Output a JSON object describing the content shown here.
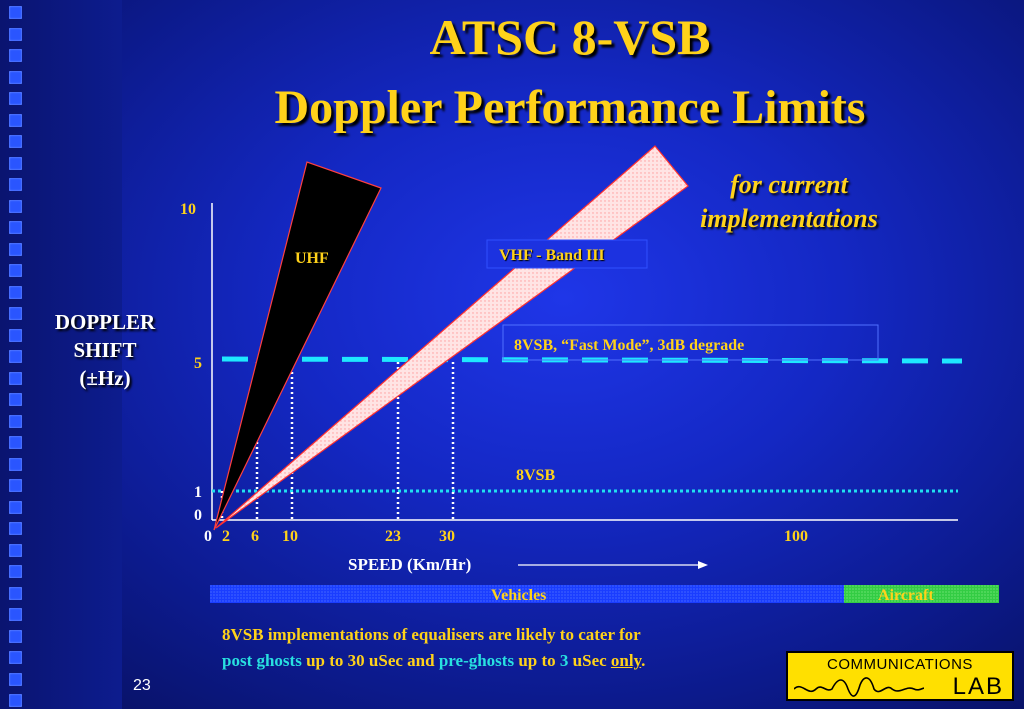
{
  "slide": {
    "title_line1": "ATSC 8-VSB",
    "title_line2": "Doppler Performance Limits",
    "subtitle_line1": "for current",
    "subtitle_line2": "implementations",
    "slide_number": "23"
  },
  "axes": {
    "y_label_line1": "DOPPLER",
    "y_label_line2": "SHIFT",
    "y_label_line3": "(±Hz)",
    "x_label": "SPEED (Km/Hr)",
    "y_ticks": [
      "10",
      "5",
      "1",
      "0"
    ],
    "x_ticks": [
      "0",
      "2",
      "6",
      "10",
      "23",
      "30",
      "100"
    ]
  },
  "labels": {
    "uhf": "UHF",
    "vhf": "VHF - Band III",
    "fast_mode": "8VSB, “Fast Mode”, 3dB degrade",
    "vsb": "8VSB",
    "vehicles": "Vehicles",
    "aircraft": "Aircraft"
  },
  "colors": {
    "title": "#ffd21a",
    "dash_line": "#1ee8ff",
    "dotted_line": "#20e0f0",
    "vhf_fill": "#ffd6d6",
    "vehicles_bar": "#1a3dff",
    "aircraft_bar": "#30d040"
  },
  "chart_data": {
    "type": "line",
    "xlabel": "SPEED (Km/Hr)",
    "ylabel": "DOPPLER SHIFT (±Hz)",
    "x_ticks": [
      0,
      2,
      6,
      10,
      23,
      30,
      100
    ],
    "y_ticks": [
      0,
      1,
      5,
      10
    ],
    "series": [
      {
        "name": "UHF",
        "shape": "wedge"
      },
      {
        "name": "VHF - Band III",
        "shape": "wedge"
      }
    ],
    "thresholds": [
      {
        "name": "8VSB, “Fast Mode”, 3dB degrade",
        "y": 5
      },
      {
        "name": "8VSB",
        "y": 1
      }
    ],
    "markers_x": [
      2,
      6,
      10,
      23,
      30
    ]
  },
  "note": {
    "p1": "8VSB implementations of equalisers are likely to cater for",
    "p2a": "post ghosts",
    "p2b": " up to 30 uSec and ",
    "p2c": "pre-ghosts",
    "p2d": " up to ",
    "p2e": "3",
    "p2f": "  uSec ",
    "p2g": "only",
    "p2h": "."
  },
  "logo": {
    "line1": "COMMUNICATIONS",
    "line2": "LAB"
  }
}
